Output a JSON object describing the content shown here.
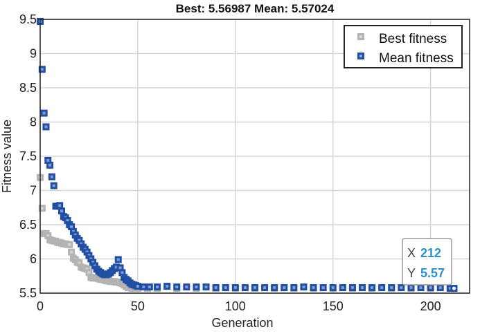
{
  "chart_data": {
    "type": "scatter",
    "title": "Best: 5.56987 Mean: 5.57024",
    "xlabel": "Generation",
    "ylabel": "Fitness value",
    "xlim": [
      0,
      220
    ],
    "ylim": [
      5.5,
      9.5
    ],
    "xticks": [
      0,
      50,
      100,
      150,
      200
    ],
    "yticks": [
      5.5,
      6,
      6.5,
      7,
      7.5,
      8,
      8.5,
      9,
      9.5
    ],
    "xtick_labels": [
      "0",
      "50",
      "100",
      "150",
      "200"
    ],
    "ytick_labels": [
      "5.5",
      "6",
      "6.5",
      "7",
      "7.5",
      "8",
      "8.5",
      "9",
      "9.5"
    ],
    "grid": true,
    "legend_position": "top-right",
    "series": [
      {
        "name": "Best fitness",
        "color": "#b3b3b3",
        "points": [
          [
            0,
            7.19
          ],
          [
            1,
            6.74
          ],
          [
            2,
            6.37
          ],
          [
            3,
            6.37
          ],
          [
            4,
            6.34
          ],
          [
            5,
            6.28
          ],
          [
            6,
            6.27
          ],
          [
            7,
            6.26
          ],
          [
            8,
            6.26
          ],
          [
            9,
            6.24
          ],
          [
            10,
            6.24
          ],
          [
            11,
            6.23
          ],
          [
            12,
            6.22
          ],
          [
            13,
            6.22
          ],
          [
            14,
            6.21
          ],
          [
            15,
            6.21
          ],
          [
            16,
            6.1
          ],
          [
            17,
            6.01
          ],
          [
            18,
            5.99
          ],
          [
            19,
            5.95
          ],
          [
            20,
            5.94
          ],
          [
            21,
            5.88
          ],
          [
            22,
            5.87
          ],
          [
            23,
            5.86
          ],
          [
            24,
            5.85
          ],
          [
            25,
            5.8
          ],
          [
            26,
            5.73
          ],
          [
            27,
            5.72
          ],
          [
            28,
            5.72
          ],
          [
            29,
            5.72
          ],
          [
            30,
            5.71
          ],
          [
            31,
            5.7
          ],
          [
            32,
            5.7
          ],
          [
            33,
            5.69
          ],
          [
            34,
            5.68
          ],
          [
            35,
            5.68
          ],
          [
            36,
            5.67
          ],
          [
            37,
            5.67
          ],
          [
            38,
            5.67
          ],
          [
            39,
            5.66
          ],
          [
            40,
            5.66
          ],
          [
            41,
            5.65
          ],
          [
            42,
            5.64
          ],
          [
            43,
            5.62
          ],
          [
            44,
            5.6
          ],
          [
            45,
            5.58
          ],
          [
            46,
            5.58
          ],
          [
            47,
            5.57
          ],
          [
            48,
            5.57
          ],
          [
            49,
            5.57
          ],
          [
            50,
            5.57
          ],
          [
            55,
            5.57
          ],
          [
            60,
            5.57
          ],
          [
            70,
            5.57
          ],
          [
            80,
            5.57
          ],
          [
            90,
            5.57
          ],
          [
            100,
            5.57
          ],
          [
            110,
            5.57
          ],
          [
            120,
            5.57
          ],
          [
            130,
            5.57
          ],
          [
            140,
            5.57
          ],
          [
            150,
            5.57
          ],
          [
            160,
            5.57
          ],
          [
            170,
            5.57
          ],
          [
            180,
            5.57
          ],
          [
            190,
            5.57
          ],
          [
            200,
            5.57
          ],
          [
            212,
            5.57
          ]
        ]
      },
      {
        "name": "Mean fitness",
        "color": "#1f4ea3",
        "points": [
          [
            0,
            9.47
          ],
          [
            1,
            8.77
          ],
          [
            2,
            8.13
          ],
          [
            3,
            7.93
          ],
          [
            4,
            7.44
          ],
          [
            5,
            7.37
          ],
          [
            6,
            7.2
          ],
          [
            7,
            7.07
          ],
          [
            8,
            6.77
          ],
          [
            9,
            6.77
          ],
          [
            10,
            6.78
          ],
          [
            11,
            6.7
          ],
          [
            12,
            6.62
          ],
          [
            13,
            6.6
          ],
          [
            14,
            6.56
          ],
          [
            15,
            6.5
          ],
          [
            16,
            6.47
          ],
          [
            17,
            6.4
          ],
          [
            18,
            6.35
          ],
          [
            19,
            6.3
          ],
          [
            20,
            6.27
          ],
          [
            21,
            6.22
          ],
          [
            22,
            6.17
          ],
          [
            23,
            6.14
          ],
          [
            24,
            6.1
          ],
          [
            25,
            6.05
          ],
          [
            26,
            6.0
          ],
          [
            27,
            5.95
          ],
          [
            28,
            5.9
          ],
          [
            29,
            5.85
          ],
          [
            30,
            5.82
          ],
          [
            31,
            5.8
          ],
          [
            32,
            5.78
          ],
          [
            33,
            5.77
          ],
          [
            34,
            5.77
          ],
          [
            35,
            5.78
          ],
          [
            36,
            5.8
          ],
          [
            37,
            5.83
          ],
          [
            38,
            5.86
          ],
          [
            39,
            5.88
          ],
          [
            40,
            5.99
          ],
          [
            41,
            5.87
          ],
          [
            42,
            5.8
          ],
          [
            43,
            5.73
          ],
          [
            44,
            5.7
          ],
          [
            45,
            5.68
          ],
          [
            46,
            5.65
          ],
          [
            47,
            5.63
          ],
          [
            48,
            5.62
          ],
          [
            49,
            5.61
          ],
          [
            50,
            5.6
          ],
          [
            53,
            5.59
          ],
          [
            56,
            5.59
          ],
          [
            60,
            5.59
          ],
          [
            65,
            5.6
          ],
          [
            70,
            5.59
          ],
          [
            75,
            5.59
          ],
          [
            80,
            5.59
          ],
          [
            85,
            5.59
          ],
          [
            90,
            5.58
          ],
          [
            95,
            5.58
          ],
          [
            100,
            5.58
          ],
          [
            105,
            5.58
          ],
          [
            110,
            5.58
          ],
          [
            115,
            5.58
          ],
          [
            120,
            5.58
          ],
          [
            125,
            5.58
          ],
          [
            130,
            5.58
          ],
          [
            135,
            5.59
          ],
          [
            140,
            5.58
          ],
          [
            145,
            5.58
          ],
          [
            150,
            5.58
          ],
          [
            155,
            5.58
          ],
          [
            160,
            5.58
          ],
          [
            165,
            5.58
          ],
          [
            170,
            5.58
          ],
          [
            175,
            5.58
          ],
          [
            180,
            5.58
          ],
          [
            185,
            5.58
          ],
          [
            190,
            5.58
          ],
          [
            195,
            5.58
          ],
          [
            200,
            5.58
          ],
          [
            205,
            5.58
          ],
          [
            210,
            5.57
          ],
          [
            212,
            5.57
          ]
        ]
      }
    ],
    "datatip": {
      "x_label": "X",
      "x_value": "212",
      "y_label": "Y",
      "y_value": "5.57",
      "x": 212,
      "y": 5.57
    }
  }
}
